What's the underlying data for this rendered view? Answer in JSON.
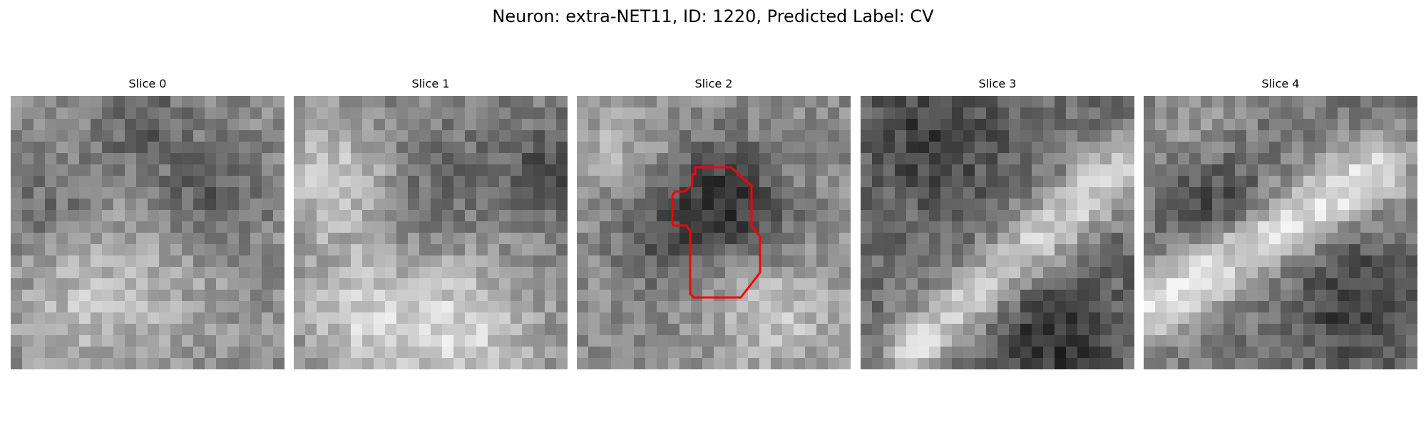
{
  "title": "Neuron: extra-NET11, ID: 1220, Predicted Label: CV",
  "slices": [
    {
      "label": "Slice 0",
      "has_roi": false
    },
    {
      "label": "Slice 1",
      "has_roi": false
    },
    {
      "label": "Slice 2",
      "has_roi": true
    },
    {
      "label": "Slice 3",
      "has_roi": false
    },
    {
      "label": "Slice 4",
      "has_roi": false
    }
  ],
  "colors": {
    "roi_outline": "#ff0000",
    "colormap": "gray"
  }
}
